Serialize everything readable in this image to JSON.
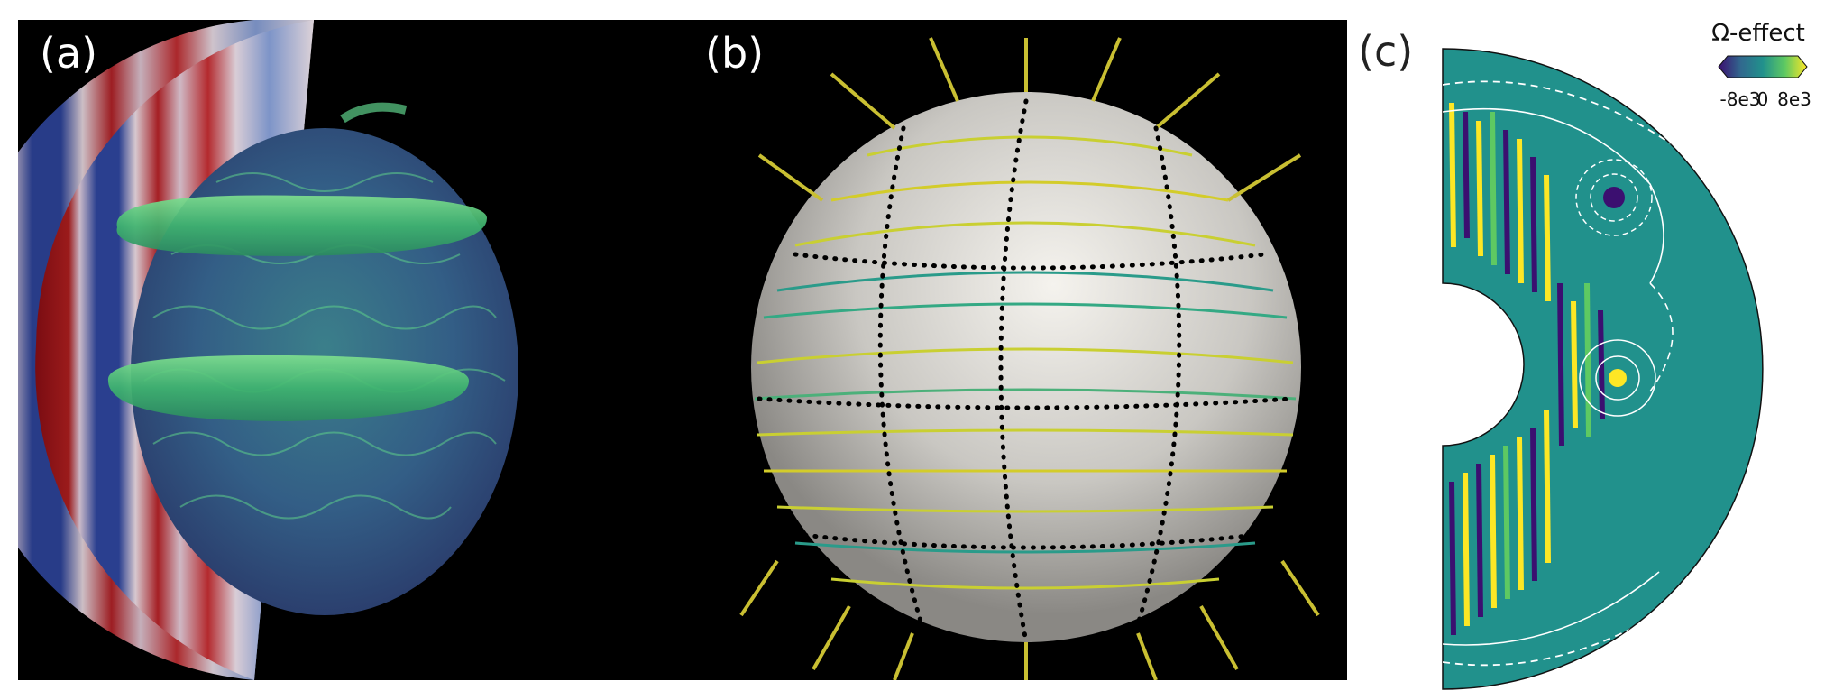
{
  "panels": [
    {
      "label": "(a)"
    },
    {
      "label": "(b)"
    },
    {
      "label": "(c)"
    }
  ],
  "colorbar": {
    "title": "Ω-effect",
    "ticks": [
      "-8e3",
      "0",
      "8e3"
    ],
    "colors": [
      "#3b0f70",
      "#2c728e",
      "#21918c",
      "#5ec962",
      "#fde725"
    ]
  },
  "colors": {
    "background": "#000000",
    "field_green": "#4fc77a",
    "red": "#8b1a1a",
    "blue": "#2a3f8f",
    "line_yellow": "#d9cf2a",
    "teal": "#21918c"
  }
}
